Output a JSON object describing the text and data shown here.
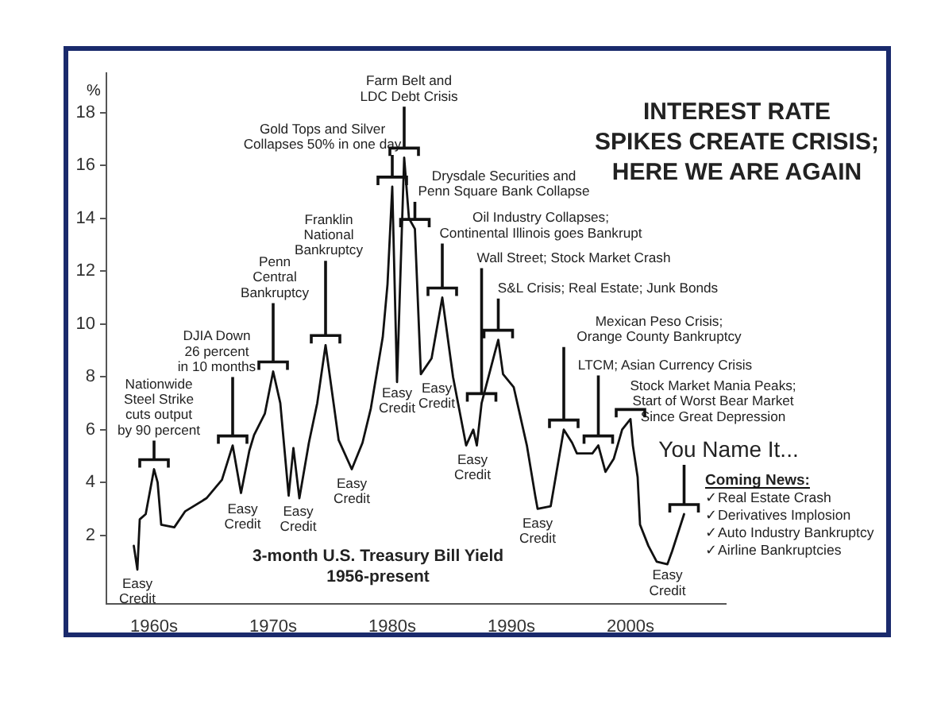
{
  "chart_data": {
    "type": "line",
    "title": "INTEREST RATE\nSPIKES CREATE CRISIS;\nHERE WE ARE AGAIN",
    "subtitle": "3-month U.S. Treasury Bill Yield\n1956-present",
    "ylabel": "%",
    "x": [
      1958.3,
      1958.6,
      1958.8,
      1959.3,
      1960.0,
      1960.3,
      1960.6,
      1961.7,
      1962.6,
      1964.4,
      1965.7,
      1966.6,
      1967.3,
      1968.0,
      1968.4,
      1969.3,
      1970.0,
      1970.6,
      1971.3,
      1971.7,
      1972.2,
      1973.0,
      1973.7,
      1974.4,
      1975.5,
      1976.6,
      1977.5,
      1978.2,
      1979.2,
      1979.6,
      1980.0,
      1980.4,
      1980.8,
      1981.0,
      1981.4,
      1981.9,
      1982.4,
      1983.3,
      1984.2,
      1985.1,
      1986.2,
      1986.8,
      1987.1,
      1987.5,
      1988.6,
      1988.9,
      1989.3,
      1990.2,
      1991.3,
      1992.0,
      1992.2,
      1993.3,
      1994.4,
      1995.1,
      1995.5,
      1996.8,
      1997.3,
      1997.9,
      1998.6,
      1999.3,
      2000.0,
      2000.2,
      2000.6,
      2000.8,
      2001.5,
      2002.2,
      2003.1,
      2003.5,
      2004.5
    ],
    "series": [
      {
        "color": "#111111",
        "values": [
          1.6,
          0.7,
          2.6,
          2.8,
          4.5,
          4.0,
          2.4,
          2.3,
          2.9,
          3.4,
          4.1,
          5.4,
          3.6,
          5.2,
          5.8,
          6.6,
          8.2,
          7.0,
          3.5,
          5.3,
          3.4,
          5.5,
          7.0,
          9.2,
          5.6,
          4.5,
          5.5,
          6.8,
          9.5,
          11.5,
          15.2,
          7.8,
          13.5,
          16.3,
          14.0,
          13.6,
          8.1,
          8.7,
          11.0,
          8.0,
          5.4,
          6.0,
          5.4,
          7.0,
          8.9,
          9.4,
          8.1,
          7.6,
          5.4,
          3.5,
          3.0,
          3.1,
          6.0,
          5.5,
          5.1,
          5.1,
          5.4,
          4.4,
          4.9,
          6.0,
          6.4,
          5.4,
          4.2,
          2.4,
          1.6,
          1.0,
          0.9,
          1.4,
          2.8
        ]
      }
    ],
    "xlim": [
      1956,
      2008
    ],
    "xticks": [
      {
        "value": 1960,
        "label": "1960s"
      },
      {
        "value": 1970,
        "label": "1970s"
      },
      {
        "value": 1980,
        "label": "1980s"
      },
      {
        "value": 1990,
        "label": "1990s"
      },
      {
        "value": 2000,
        "label": "2000s"
      }
    ],
    "ylim": [
      -0.6,
      19.5
    ],
    "yticks": [
      2,
      4,
      6,
      8,
      10,
      12,
      14,
      16,
      18
    ],
    "marker": "none",
    "line_style": "solid",
    "annotations": [
      {
        "text": "Easy\nCredit",
        "x": 1958.6,
        "y": 0.7
      },
      {
        "text": "Nationwide\nSteel Strike\ncuts output\nby 90 percent",
        "x": 1960.0,
        "y": 4.5
      },
      {
        "text": "DJIA Down\n26 percent\nin 10 months",
        "x": 1966.6,
        "y": 5.4
      },
      {
        "text": "Easy\nCredit",
        "x": 1967.3,
        "y": 3.6
      },
      {
        "text": "Penn\nCentral\nBankruptcy",
        "x": 1970.0,
        "y": 8.2
      },
      {
        "text": "Easy\nCredit",
        "x": 1971.3,
        "y": 3.5
      },
      {
        "text": "Franklin\nNational\nBankruptcy",
        "x": 1974.4,
        "y": 9.2
      },
      {
        "text": "Easy\nCredit",
        "x": 1976.6,
        "y": 4.5
      },
      {
        "text": "Gold Tops and Silver\nCollapses 50% in one day",
        "x": 1980.0,
        "y": 15.2
      },
      {
        "text": "Easy\nCredit",
        "x": 1980.4,
        "y": 7.8
      },
      {
        "text": "Farm Belt and\nLDC Debt Crisis",
        "x": 1981.0,
        "y": 16.3
      },
      {
        "text": "Drysdale Securities and\nPenn Square Bank Collapse",
        "x": 1981.9,
        "y": 13.6
      },
      {
        "text": "Easy\nCredit",
        "x": 1982.4,
        "y": 8.1
      },
      {
        "text": "Oil Industry Collapses;\nContinental Illinois goes Bankrupt",
        "x": 1984.2,
        "y": 11.0
      },
      {
        "text": "Easy\nCredit",
        "x": 1986.2,
        "y": 5.4
      },
      {
        "text": "Wall Street; Stock Market Crash",
        "x": 1987.5,
        "y": 7.0
      },
      {
        "text": "S&L Crisis; Real Estate; Junk Bonds",
        "x": 1988.9,
        "y": 9.4
      },
      {
        "text": "Easy\nCredit",
        "x": 1992.2,
        "y": 3.0
      },
      {
        "text": "Mexican Peso Crisis;\nOrange County Bankruptcy",
        "x": 1994.4,
        "y": 6.0
      },
      {
        "text": "LTCM; Asian Currency Crisis",
        "x": 1997.3,
        "y": 5.4
      },
      {
        "text": "Stock Market Mania Peaks;\nStart of Worst Bear Market\nSince Great Depression",
        "x": 2000.0,
        "y": 6.4
      },
      {
        "text": "Easy\nCredit",
        "x": 2003.1,
        "y": 0.9
      },
      {
        "text": "You Name It...",
        "x": 2004.5,
        "y": 2.8
      },
      "Coming News:\n✓Real Estate Crash\n✓Derivatives Implosion\n✓Auto Industry Bankruptcy\n✓Airline Bankruptcies"
    ]
  }
}
